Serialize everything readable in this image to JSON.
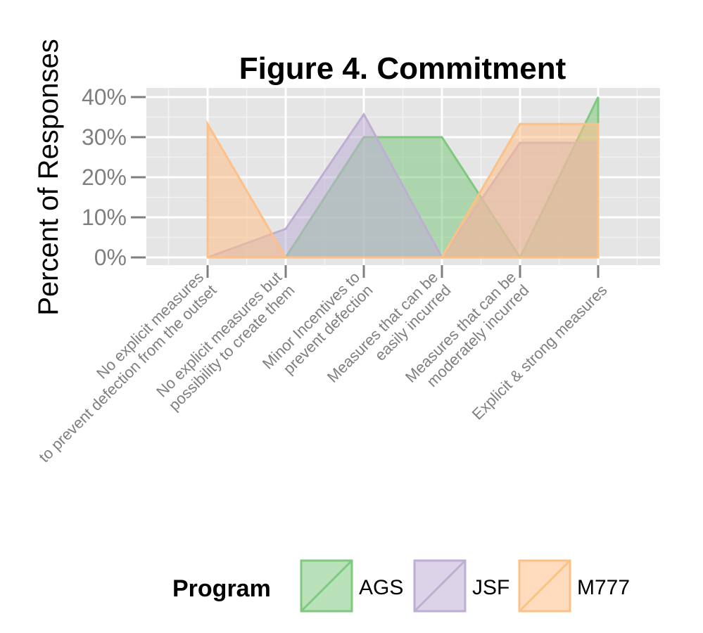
{
  "chart_data": {
    "type": "area",
    "title": "Figure 4. Commitment",
    "xlabel": "",
    "ylabel": "Percent of Responses",
    "categories": [
      [
        "No explicit measures",
        "to prevent defection from the outset"
      ],
      [
        "No explicit measures but",
        "possibility to create them"
      ],
      [
        "Minor Incentives to",
        "prevent defection"
      ],
      [
        "Measures that can be",
        "easily incurred"
      ],
      [
        "Measures that can be",
        "moderately incurred"
      ],
      [
        "Explicit & strong measures"
      ]
    ],
    "yticks": [
      "0%",
      "10%",
      "20%",
      "30%",
      "40%"
    ],
    "ylim": [
      0,
      40
    ],
    "grid": true,
    "legend": {
      "title": "Program",
      "placement": "bottom"
    },
    "series": [
      {
        "name": "AGS",
        "values": [
          0,
          0,
          30,
          30,
          0,
          40
        ],
        "fill": "#7fc97f",
        "stroke": "#7fc97f"
      },
      {
        "name": "JSF",
        "values": [
          0,
          7.1,
          35.7,
          0,
          28.6,
          28.6
        ],
        "fill": "#beaed4",
        "stroke": "#beaed4"
      },
      {
        "name": "M777",
        "values": [
          33.3,
          0,
          0,
          0,
          33.3,
          33.3
        ],
        "fill": "#fdc086",
        "stroke": "#fdc086"
      }
    ]
  }
}
